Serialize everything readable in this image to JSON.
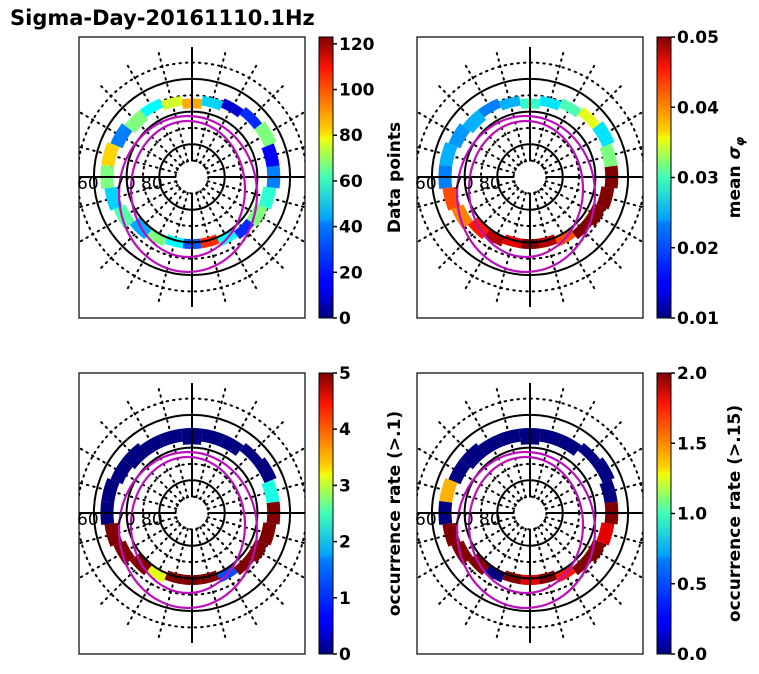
{
  "figure": {
    "title": "Sigma-Day-20161110.1Hz"
  },
  "chart_data": [
    {
      "type": "heatmap",
      "projection": "polar (magnetic latitude / MLT), noon at top",
      "panel": "top-left",
      "colorbar_label": "Data points",
      "colormap": "jet",
      "clim": [
        0,
        120
      ],
      "colorbar_ticks": [
        "0",
        "20",
        "40",
        "60",
        "80",
        "100",
        "120"
      ],
      "latitude_labels": [
        "60",
        "70",
        "80"
      ],
      "latitude_circles_solid": [
        60,
        70,
        80
      ],
      "latitude_circles_dotted": [
        55,
        65,
        75,
        85
      ],
      "mlt_meridians": 24,
      "oval_boundaries": "two magenta rings",
      "bins": [
        {
          "mlt": 10,
          "lat_range": [
            64,
            67
          ],
          "value": 10
        },
        {
          "mlt": 11,
          "lat_range": [
            65,
            68
          ],
          "value": 40
        },
        {
          "mlt": 12,
          "lat_range": [
            66,
            69
          ],
          "value": 85
        },
        {
          "mlt": 13,
          "lat_range": [
            65,
            68
          ],
          "value": 70
        },
        {
          "mlt": 14,
          "lat_range": [
            64,
            67
          ],
          "value": 45
        },
        {
          "mlt": 15,
          "lat_range": [
            64,
            68
          ],
          "value": 60
        },
        {
          "mlt": 16,
          "lat_range": [
            63,
            67
          ],
          "value": 30
        },
        {
          "mlt": 17,
          "lat_range": [
            62,
            66
          ],
          "value": 80
        },
        {
          "mlt": 18,
          "lat_range": [
            62,
            66
          ],
          "value": 60
        },
        {
          "mlt": 19,
          "lat_range": [
            63,
            67
          ],
          "value": 40
        },
        {
          "mlt": 20,
          "lat_range": [
            64,
            68
          ],
          "value": 55
        },
        {
          "mlt": 21,
          "lat_range": [
            66,
            70
          ],
          "value": 35
        },
        {
          "mlt": 22,
          "lat_range": [
            67,
            70
          ],
          "value": 60
        },
        {
          "mlt": 23,
          "lat_range": [
            68,
            71
          ],
          "value": 45
        },
        {
          "mlt": 0,
          "lat_range": [
            68,
            71
          ],
          "value": 25
        },
        {
          "mlt": 1,
          "lat_range": [
            68,
            71
          ],
          "value": 100
        },
        {
          "mlt": 2,
          "lat_range": [
            67,
            70
          ],
          "value": 45
        },
        {
          "mlt": 3,
          "lat_range": [
            66,
            69
          ],
          "value": 20
        },
        {
          "mlt": 4,
          "lat_range": [
            65,
            69
          ],
          "value": 60
        },
        {
          "mlt": 5,
          "lat_range": [
            64,
            68
          ],
          "value": 50
        },
        {
          "mlt": 6,
          "lat_range": [
            63,
            67
          ],
          "value": 30
        },
        {
          "mlt": 7,
          "lat_range": [
            63,
            67
          ],
          "value": 15
        },
        {
          "mlt": 8,
          "lat_range": [
            62,
            66
          ],
          "value": 60
        },
        {
          "mlt": 9,
          "lat_range": [
            63,
            66
          ],
          "value": 20
        }
      ]
    },
    {
      "type": "heatmap",
      "projection": "polar (magnetic latitude / MLT), noon at top",
      "panel": "top-right",
      "colorbar_label": "mean σ_φ",
      "colormap": "jet",
      "clim": [
        0.01,
        0.05
      ],
      "colorbar_ticks": [
        "0.01",
        "0.02",
        "0.03",
        "0.04",
        "0.05"
      ],
      "latitude_labels": [
        "60",
        "70",
        "80"
      ],
      "bins": [
        {
          "mlt": 10,
          "lat_range": [
            64,
            67
          ],
          "value": 0.028
        },
        {
          "mlt": 11,
          "lat_range": [
            65,
            68
          ],
          "value": 0.024
        },
        {
          "mlt": 12,
          "lat_range": [
            66,
            69
          ],
          "value": 0.027
        },
        {
          "mlt": 13,
          "lat_range": [
            65,
            68
          ],
          "value": 0.022
        },
        {
          "mlt": 14,
          "lat_range": [
            64,
            67
          ],
          "value": 0.02
        },
        {
          "mlt": 15,
          "lat_range": [
            64,
            68
          ],
          "value": 0.022
        },
        {
          "mlt": 16,
          "lat_range": [
            63,
            67
          ],
          "value": 0.021
        },
        {
          "mlt": 17,
          "lat_range": [
            62,
            66
          ],
          "value": 0.022
        },
        {
          "mlt": 18,
          "lat_range": [
            62,
            66
          ],
          "value": 0.02
        },
        {
          "mlt": 19,
          "lat_range": [
            63,
            67
          ],
          "value": 0.042
        },
        {
          "mlt": 20,
          "lat_range": [
            64,
            68
          ],
          "value": 0.04
        },
        {
          "mlt": 21,
          "lat_range": [
            66,
            70
          ],
          "value": 0.044
        },
        {
          "mlt": 22,
          "lat_range": [
            67,
            70
          ],
          "value": 0.048
        },
        {
          "mlt": 23,
          "lat_range": [
            68,
            71
          ],
          "value": 0.046
        },
        {
          "mlt": 0,
          "lat_range": [
            68,
            71
          ],
          "value": 0.05
        },
        {
          "mlt": 1,
          "lat_range": [
            68,
            71
          ],
          "value": 0.048
        },
        {
          "mlt": 2,
          "lat_range": [
            67,
            70
          ],
          "value": 0.042
        },
        {
          "mlt": 3,
          "lat_range": [
            66,
            69
          ],
          "value": 0.05
        },
        {
          "mlt": 4,
          "lat_range": [
            65,
            69
          ],
          "value": 0.05
        },
        {
          "mlt": 5,
          "lat_range": [
            64,
            68
          ],
          "value": 0.05
        },
        {
          "mlt": 6,
          "lat_range": [
            63,
            67
          ],
          "value": 0.05
        },
        {
          "mlt": 7,
          "lat_range": [
            63,
            67
          ],
          "value": 0.03
        },
        {
          "mlt": 8,
          "lat_range": [
            62,
            66
          ],
          "value": 0.024
        },
        {
          "mlt": 9,
          "lat_range": [
            63,
            66
          ],
          "value": 0.034
        }
      ]
    },
    {
      "type": "heatmap",
      "projection": "polar (magnetic latitude / MLT), noon at top",
      "panel": "bottom-left",
      "colorbar_label": "occurrence rate (>.1)",
      "colormap": "jet",
      "clim": [
        0,
        5
      ],
      "colorbar_ticks": [
        "0",
        "1",
        "2",
        "3",
        "4",
        "5"
      ],
      "latitude_labels": [
        "60",
        "70",
        "80"
      ],
      "bins": [
        {
          "mlt": 10,
          "lat_range": [
            64,
            68
          ],
          "value": 0
        },
        {
          "mlt": 11,
          "lat_range": [
            64,
            68
          ],
          "value": 0
        },
        {
          "mlt": 12,
          "lat_range": [
            64,
            69
          ],
          "value": 0
        },
        {
          "mlt": 13,
          "lat_range": [
            64,
            68
          ],
          "value": 0
        },
        {
          "mlt": 14,
          "lat_range": [
            64,
            68
          ],
          "value": 0
        },
        {
          "mlt": 15,
          "lat_range": [
            63,
            68
          ],
          "value": 0
        },
        {
          "mlt": 16,
          "lat_range": [
            63,
            67
          ],
          "value": 0
        },
        {
          "mlt": 17,
          "lat_range": [
            62,
            66
          ],
          "value": 0
        },
        {
          "mlt": 18,
          "lat_range": [
            62,
            66
          ],
          "value": 0
        },
        {
          "mlt": 19,
          "lat_range": [
            63,
            67
          ],
          "value": 5
        },
        {
          "mlt": 20,
          "lat_range": [
            64,
            68
          ],
          "value": 5
        },
        {
          "mlt": 21,
          "lat_range": [
            66,
            70
          ],
          "value": 5
        },
        {
          "mlt": 22,
          "lat_range": [
            67,
            70
          ],
          "value": 3
        },
        {
          "mlt": 23,
          "lat_range": [
            68,
            71
          ],
          "value": 5
        },
        {
          "mlt": 0,
          "lat_range": [
            68,
            71
          ],
          "value": 5
        },
        {
          "mlt": 1,
          "lat_range": [
            68,
            71
          ],
          "value": 5
        },
        {
          "mlt": 2,
          "lat_range": [
            67,
            70
          ],
          "value": 1
        },
        {
          "mlt": 3,
          "lat_range": [
            66,
            69
          ],
          "value": 5
        },
        {
          "mlt": 4,
          "lat_range": [
            65,
            69
          ],
          "value": 5
        },
        {
          "mlt": 5,
          "lat_range": [
            64,
            68
          ],
          "value": 5
        },
        {
          "mlt": 6,
          "lat_range": [
            63,
            67
          ],
          "value": 5
        },
        {
          "mlt": 7,
          "lat_range": [
            63,
            67
          ],
          "value": 2
        },
        {
          "mlt": 8,
          "lat_range": [
            62,
            66
          ],
          "value": 0
        },
        {
          "mlt": 9,
          "lat_range": [
            63,
            66
          ],
          "value": 0
        }
      ]
    },
    {
      "type": "heatmap",
      "projection": "polar (magnetic latitude / MLT), noon at top",
      "panel": "bottom-right",
      "colorbar_label": "occurrence rate (>.15)",
      "colormap": "jet",
      "clim": [
        0.0,
        2.0
      ],
      "colorbar_ticks": [
        "0.0",
        "0.5",
        "1.0",
        "1.5",
        "2.0"
      ],
      "latitude_labels": [
        "60",
        "70",
        "80"
      ],
      "bins": [
        {
          "mlt": 10,
          "lat_range": [
            64,
            68
          ],
          "value": 0
        },
        {
          "mlt": 11,
          "lat_range": [
            64,
            68
          ],
          "value": 0
        },
        {
          "mlt": 12,
          "lat_range": [
            64,
            69
          ],
          "value": 0
        },
        {
          "mlt": 13,
          "lat_range": [
            64,
            68
          ],
          "value": 0
        },
        {
          "mlt": 14,
          "lat_range": [
            64,
            68
          ],
          "value": 0
        },
        {
          "mlt": 15,
          "lat_range": [
            63,
            68
          ],
          "value": 0
        },
        {
          "mlt": 16,
          "lat_range": [
            63,
            67
          ],
          "value": 0
        },
        {
          "mlt": 17,
          "lat_range": [
            62,
            66
          ],
          "value": 1.4
        },
        {
          "mlt": 18,
          "lat_range": [
            62,
            66
          ],
          "value": 0
        },
        {
          "mlt": 19,
          "lat_range": [
            63,
            67
          ],
          "value": 2.0
        },
        {
          "mlt": 20,
          "lat_range": [
            64,
            68
          ],
          "value": 2.0
        },
        {
          "mlt": 21,
          "lat_range": [
            66,
            70
          ],
          "value": 2.0
        },
        {
          "mlt": 22,
          "lat_range": [
            67,
            70
          ],
          "value": 0
        },
        {
          "mlt": 23,
          "lat_range": [
            68,
            71
          ],
          "value": 2.0
        },
        {
          "mlt": 0,
          "lat_range": [
            68,
            71
          ],
          "value": 1.8
        },
        {
          "mlt": 1,
          "lat_range": [
            68,
            71
          ],
          "value": 2.0
        },
        {
          "mlt": 2,
          "lat_range": [
            67,
            70
          ],
          "value": 1.7
        },
        {
          "mlt": 3,
          "lat_range": [
            66,
            69
          ],
          "value": 2.0
        },
        {
          "mlt": 4,
          "lat_range": [
            65,
            69
          ],
          "value": 2.0
        },
        {
          "mlt": 5,
          "lat_range": [
            64,
            68
          ],
          "value": 1.8
        },
        {
          "mlt": 6,
          "lat_range": [
            63,
            67
          ],
          "value": 2.0
        },
        {
          "mlt": 7,
          "lat_range": [
            63,
            67
          ],
          "value": 0
        },
        {
          "mlt": 8,
          "lat_range": [
            62,
            66
          ],
          "value": 0
        },
        {
          "mlt": 9,
          "lat_range": [
            63,
            66
          ],
          "value": 0
        }
      ]
    }
  ]
}
